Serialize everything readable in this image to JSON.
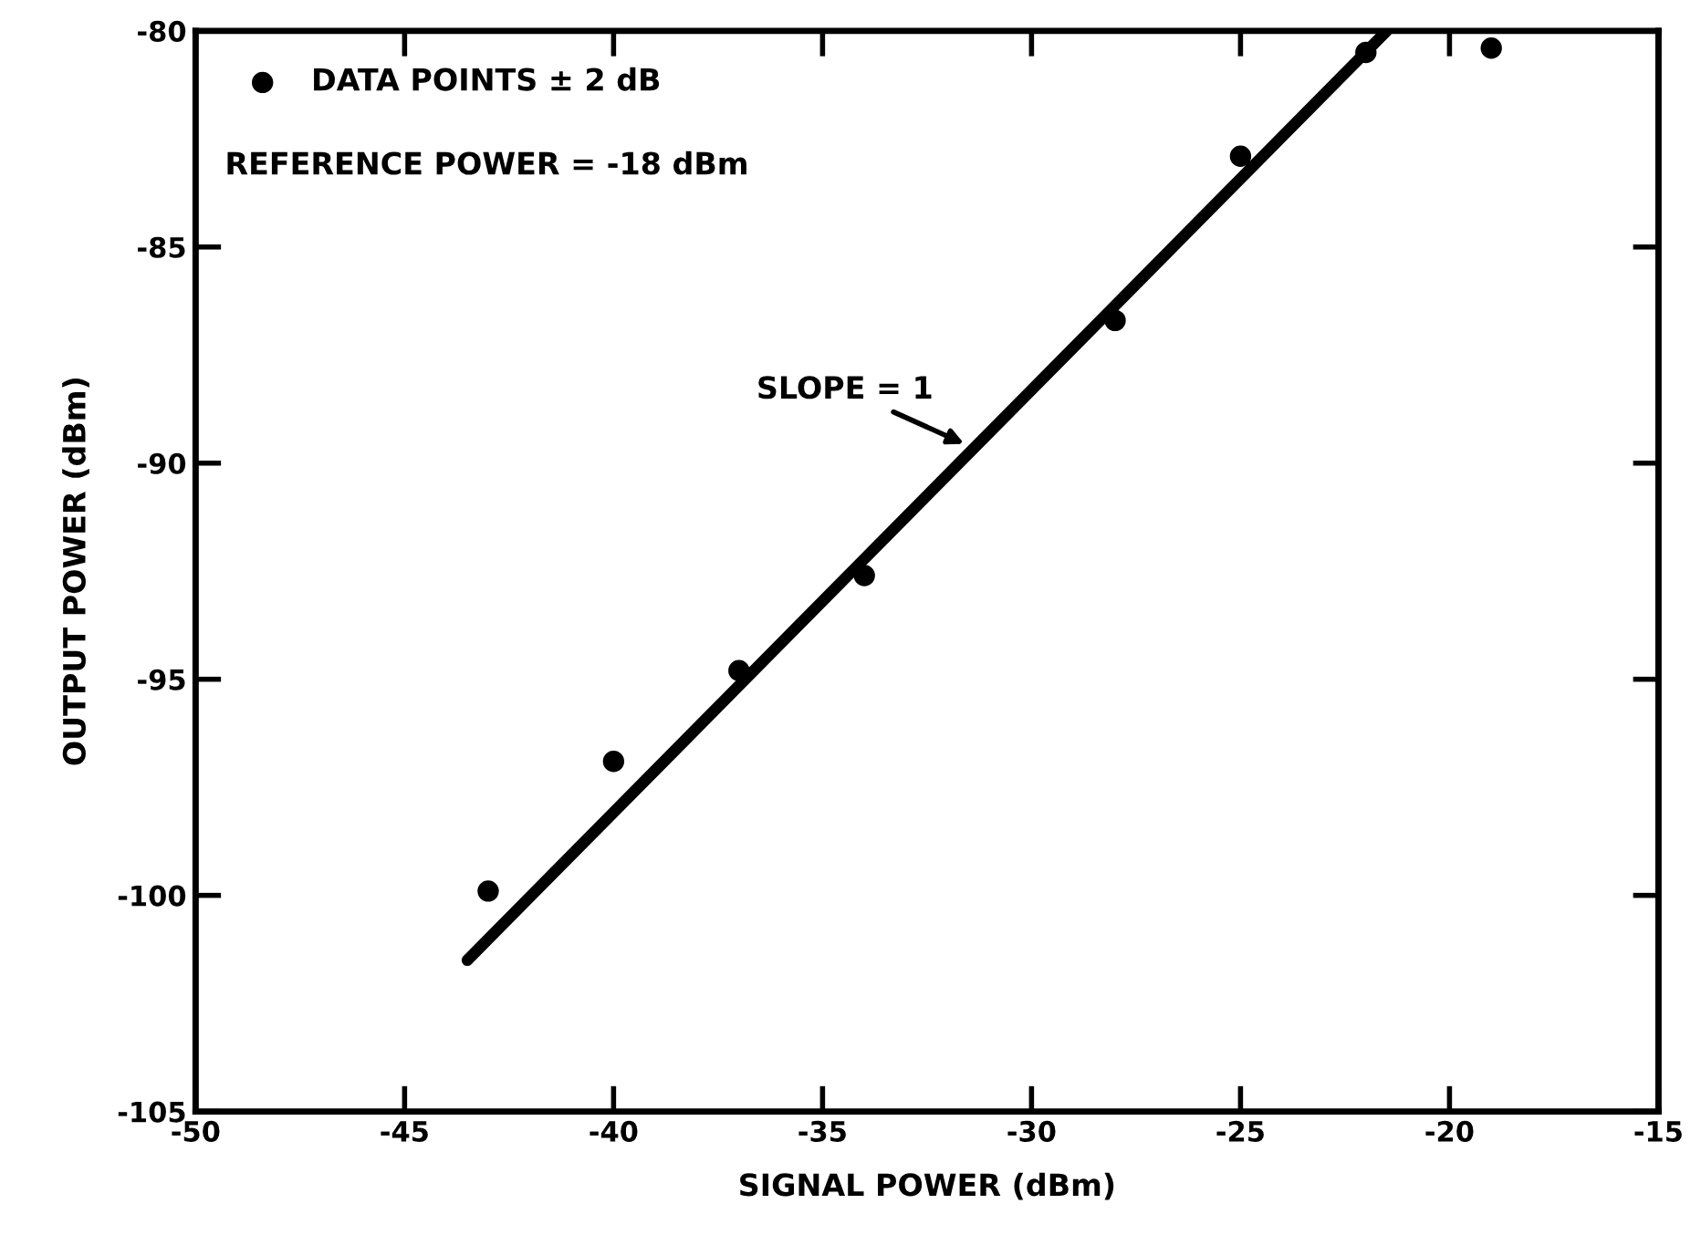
{
  "chart_data": {
    "type": "scatter",
    "xlabel": "SIGNAL POWER (dBm)",
    "ylabel": "OUTPUT POWER (dBm)",
    "series": [
      {
        "name": "DATA POINTS ± 2 dB",
        "color": "#000000",
        "marker": "circle",
        "x": [
          -43,
          -40,
          -37,
          -34,
          -28,
          -25,
          -22,
          -19
        ],
        "values": [
          -99.9,
          -96.9,
          -94.8,
          -92.6,
          -86.7,
          -82.9,
          -80.5,
          -80.4
        ]
      },
      {
        "type": "line",
        "color": "#000000",
        "line_style": "solid",
        "x": [
          -43.5,
          -21.5
        ],
        "values": [
          -101.5,
          -80
        ]
      }
    ],
    "annotations": [
      "REFERENCE POWER = -18 dBm",
      {
        "text": "SLOPE = 1",
        "x": -31.5,
        "y": -89.6
      }
    ],
    "xlim": [
      -50,
      -15
    ],
    "xticks": [
      -50,
      -45,
      -40,
      -35,
      -30,
      -25,
      -20,
      -15
    ],
    "ylim": [
      -105,
      -80
    ],
    "yticks": [
      -105,
      -100,
      -95,
      -90,
      -85,
      -80
    ],
    "grid": false,
    "legend": "top left"
  }
}
